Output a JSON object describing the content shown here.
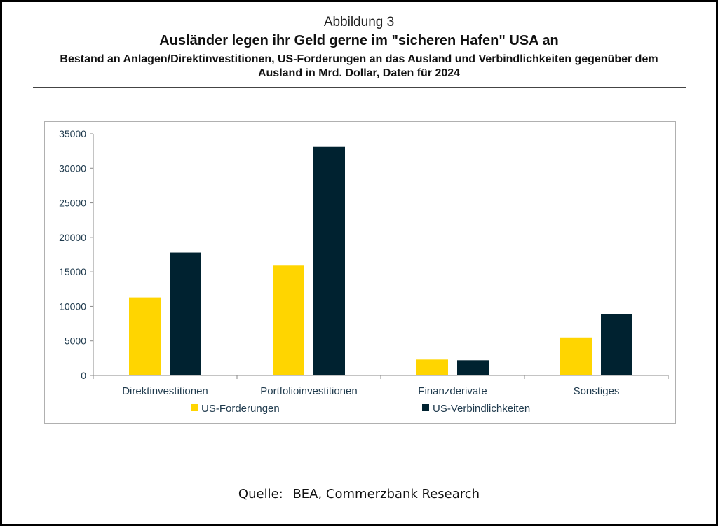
{
  "header": {
    "figure_label": "Abbildung 3",
    "title": "Ausländer legen ihr Geld gerne im \"sicheren Hafen\" USA an",
    "subtitle": "Bestand an Anlagen/Direktinvestitionen, US-Forderungen an das Ausland und Verbindlichkeiten gegenüber dem Ausland in Mrd. Dollar, Daten für 2024"
  },
  "source": {
    "label": "Quelle:",
    "text": "BEA, Commerzbank Research"
  },
  "chart_data": {
    "type": "bar",
    "categories": [
      "Direktinvestitionen",
      "Portfolioinvestitionen",
      "Finanzderivate",
      "Sonstiges"
    ],
    "series": [
      {
        "name": "US-Forderungen",
        "values": [
          11300,
          15900,
          2300,
          5500
        ],
        "color": "#ffd500"
      },
      {
        "name": "US-Verbindlichkeiten",
        "values": [
          17800,
          33100,
          2200,
          8900
        ],
        "color": "#002230"
      }
    ],
    "ylim": [
      0,
      35000
    ],
    "yticks": [
      0,
      5000,
      10000,
      15000,
      20000,
      25000,
      30000,
      35000
    ],
    "grid": false,
    "legend": "bottom"
  }
}
